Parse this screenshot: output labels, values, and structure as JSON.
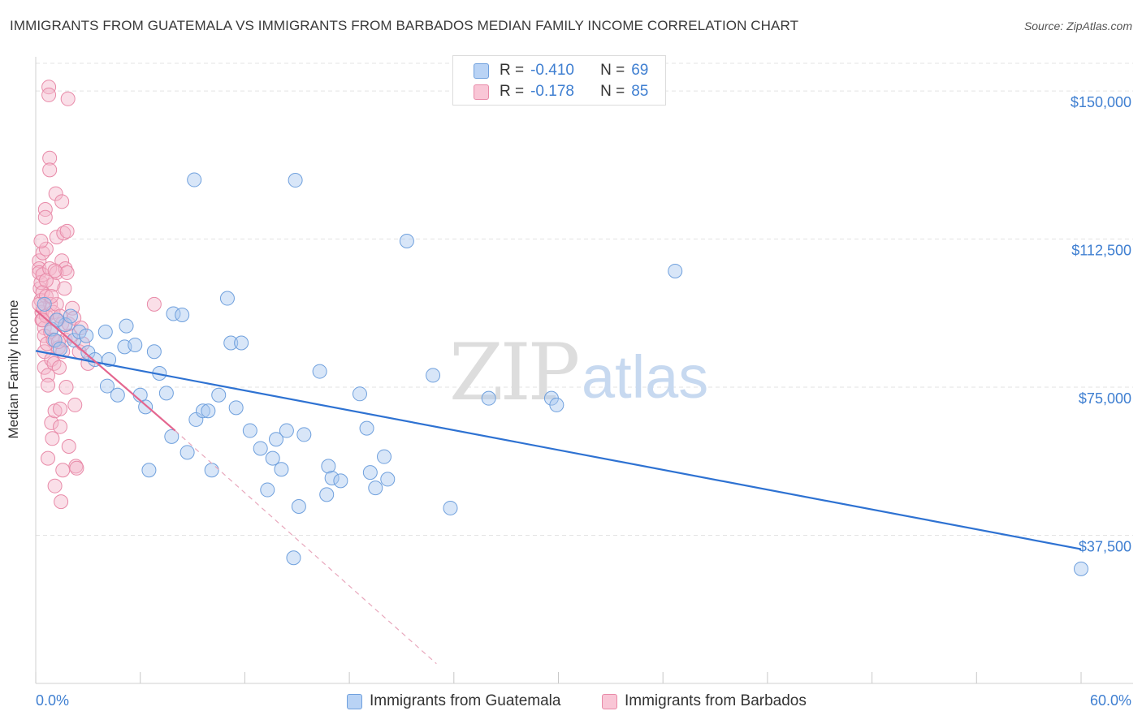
{
  "header": {
    "title": "IMMIGRANTS FROM GUATEMALA VS IMMIGRANTS FROM BARBADOS MEDIAN FAMILY INCOME CORRELATION CHART",
    "source": "Source: ZipAtlas.com"
  },
  "watermark": {
    "zip": "ZIP",
    "atlas": "atlas"
  },
  "legend": {
    "rows": [
      {
        "r_label": "R =",
        "r_value": "-0.410",
        "n_label": "N =",
        "n_value": "69",
        "color": "#a9c8f0"
      },
      {
        "r_label": "R =",
        "r_value": "-0.178",
        "n_label": "N =",
        "n_value": "85",
        "color": "#f5b7cb"
      }
    ]
  },
  "colors": {
    "blue_fill": "#a9c8f0",
    "blue_stroke": "#6fa0dd",
    "blue_line": "#2e72d2",
    "pink_fill": "#f5b7cb",
    "pink_stroke": "#e88aa8",
    "pink_line": "#e4668f",
    "grid": "#e3e3e3",
    "axis_label": "#3f7fd1"
  },
  "chart_data": {
    "type": "scatter",
    "title": "IMMIGRANTS FROM GUATEMALA VS IMMIGRANTS FROM BARBADOS MEDIAN FAMILY INCOME CORRELATION CHART",
    "xlabel": "",
    "ylabel": "Median Family Income",
    "xlim": [
      0,
      60
    ],
    "ylim": [
      0,
      157000
    ],
    "x_tick_labels": [
      "0.0%",
      "60.0%"
    ],
    "y_ticks": [
      37500,
      75000,
      112500,
      150000
    ],
    "y_tick_labels": [
      "$37,500",
      "$75,000",
      "$112,500",
      "$150,000"
    ],
    "grid": "horizontal dashed",
    "legend_position": "top-center",
    "series": [
      {
        "name": "Immigrants from Guatemala",
        "color": "#a9c8f0",
        "points": [
          [
            0.9,
            89700
          ],
          [
            1.1,
            86900
          ],
          [
            1.4,
            84700
          ],
          [
            1.7,
            90800
          ],
          [
            2.2,
            86900
          ],
          [
            2.5,
            89000
          ],
          [
            2.9,
            88000
          ],
          [
            3.0,
            83800
          ],
          [
            3.4,
            82000
          ],
          [
            4.0,
            89000
          ],
          [
            4.2,
            82000
          ],
          [
            4.1,
            75300
          ],
          [
            4.7,
            73000
          ],
          [
            5.1,
            85200
          ],
          [
            5.2,
            90500
          ],
          [
            5.7,
            85700
          ],
          [
            6.0,
            73000
          ],
          [
            6.3,
            70000
          ],
          [
            6.5,
            54000
          ],
          [
            6.8,
            84000
          ],
          [
            7.1,
            78500
          ],
          [
            7.5,
            73500
          ],
          [
            7.8,
            62500
          ],
          [
            7.9,
            93600
          ],
          [
            8.4,
            93300
          ],
          [
            8.7,
            58500
          ],
          [
            9.1,
            127500
          ],
          [
            9.2,
            66800
          ],
          [
            9.6,
            69000
          ],
          [
            9.9,
            69000
          ],
          [
            10.1,
            54000
          ],
          [
            10.5,
            73000
          ],
          [
            11.0,
            97500
          ],
          [
            11.2,
            86200
          ],
          [
            11.5,
            69800
          ],
          [
            11.8,
            86200
          ],
          [
            12.3,
            64000
          ],
          [
            12.9,
            59500
          ],
          [
            13.3,
            49000
          ],
          [
            13.6,
            57000
          ],
          [
            13.8,
            61800
          ],
          [
            14.1,
            54200
          ],
          [
            14.4,
            64000
          ],
          [
            14.8,
            31800
          ],
          [
            14.9,
            127400
          ],
          [
            15.1,
            44800
          ],
          [
            15.4,
            63000
          ],
          [
            16.3,
            79000
          ],
          [
            16.7,
            47800
          ],
          [
            16.8,
            55000
          ],
          [
            17.0,
            52000
          ],
          [
            17.5,
            51300
          ],
          [
            18.6,
            73300
          ],
          [
            19.0,
            64600
          ],
          [
            19.2,
            53400
          ],
          [
            19.5,
            49500
          ],
          [
            20.0,
            57400
          ],
          [
            20.2,
            51700
          ],
          [
            21.3,
            112000
          ],
          [
            22.8,
            78000
          ],
          [
            23.8,
            44400
          ],
          [
            26.0,
            72200
          ],
          [
            29.6,
            72200
          ],
          [
            29.9,
            70500
          ],
          [
            36.7,
            104400
          ],
          [
            60.0,
            29000
          ],
          [
            0.5,
            96000
          ],
          [
            1.2,
            92000
          ],
          [
            2.0,
            93000
          ]
        ]
      },
      {
        "name": "Immigrants from Barbados",
        "color": "#f5b7cb",
        "points": [
          [
            0.2,
            107000
          ],
          [
            0.2,
            105000
          ],
          [
            0.2,
            104000
          ],
          [
            0.25,
            100000
          ],
          [
            0.3,
            101500
          ],
          [
            0.3,
            97000
          ],
          [
            0.35,
            94000
          ],
          [
            0.35,
            92000
          ],
          [
            0.4,
            109000
          ],
          [
            0.4,
            103500
          ],
          [
            0.4,
            99000
          ],
          [
            0.45,
            95000
          ],
          [
            0.5,
            90000
          ],
          [
            0.5,
            88000
          ],
          [
            0.5,
            84000
          ],
          [
            0.5,
            80000
          ],
          [
            0.55,
            120000
          ],
          [
            0.55,
            118000
          ],
          [
            0.6,
            110000
          ],
          [
            0.6,
            98000
          ],
          [
            0.6,
            93000
          ],
          [
            0.65,
            86000
          ],
          [
            0.7,
            78000
          ],
          [
            0.7,
            75500
          ],
          [
            0.7,
            57000
          ],
          [
            0.75,
            151000
          ],
          [
            0.75,
            149000
          ],
          [
            0.8,
            133000
          ],
          [
            0.8,
            130000
          ],
          [
            0.8,
            105000
          ],
          [
            0.85,
            96000
          ],
          [
            0.85,
            89000
          ],
          [
            0.9,
            82000
          ],
          [
            0.9,
            66000
          ],
          [
            0.95,
            62000
          ],
          [
            1.0,
            101000
          ],
          [
            1.0,
            94000
          ],
          [
            1.0,
            87000
          ],
          [
            1.05,
            81000
          ],
          [
            1.1,
            69000
          ],
          [
            1.1,
            50000
          ],
          [
            1.15,
            124000
          ],
          [
            1.2,
            113000
          ],
          [
            1.2,
            104000
          ],
          [
            1.2,
            96000
          ],
          [
            1.25,
            92000
          ],
          [
            1.3,
            85000
          ],
          [
            1.35,
            80000
          ],
          [
            1.4,
            69500
          ],
          [
            1.4,
            65000
          ],
          [
            1.45,
            46000
          ],
          [
            1.5,
            122000
          ],
          [
            1.5,
            107000
          ],
          [
            1.5,
            91000
          ],
          [
            1.55,
            84000
          ],
          [
            1.55,
            54000
          ],
          [
            1.6,
            114000
          ],
          [
            1.65,
            100000
          ],
          [
            1.7,
            105000
          ],
          [
            1.7,
            87000
          ],
          [
            1.75,
            75000
          ],
          [
            1.8,
            114500
          ],
          [
            1.8,
            104000
          ],
          [
            1.85,
            148000
          ],
          [
            1.9,
            91000
          ],
          [
            1.9,
            60000
          ],
          [
            2.0,
            88000
          ],
          [
            2.1,
            95000
          ],
          [
            2.2,
            92500
          ],
          [
            2.25,
            70500
          ],
          [
            2.3,
            55000
          ],
          [
            2.35,
            54500
          ],
          [
            2.5,
            84000
          ],
          [
            2.6,
            90000
          ],
          [
            2.7,
            86000
          ],
          [
            3.0,
            81000
          ],
          [
            6.8,
            96000
          ],
          [
            0.3,
            112000
          ],
          [
            0.4,
            92000
          ],
          [
            0.6,
            102000
          ],
          [
            0.9,
            98000
          ],
          [
            1.1,
            104500
          ],
          [
            1.3,
            86500
          ],
          [
            1.4,
            93000
          ],
          [
            0.2,
            96000
          ]
        ]
      }
    ],
    "trendlines": [
      {
        "series": "Immigrants from Guatemala",
        "x": [
          0,
          60
        ],
        "y": [
          84200,
          34000
        ]
      },
      {
        "series": "Immigrants from Barbados",
        "x": [
          0,
          8
        ],
        "y": [
          94500,
          64000
        ],
        "dashed_extension_to": [
          23,
          5000
        ]
      }
    ]
  },
  "bottom_legend": {
    "items": [
      {
        "label": "Immigrants from Guatemala"
      },
      {
        "label": "Immigrants from Barbados"
      }
    ]
  }
}
